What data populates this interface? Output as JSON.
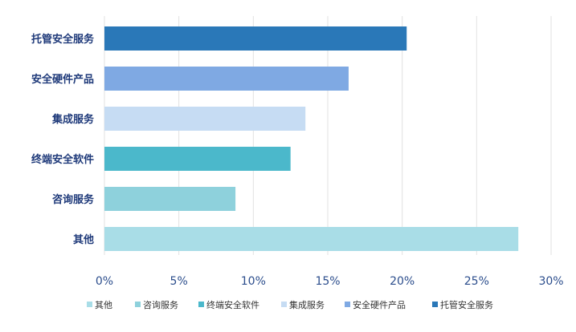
{
  "chart_data": {
    "type": "bar",
    "orientation": "horizontal",
    "categories": [
      "托管安全服务",
      "安全硬件产品",
      "集成服务",
      "终端安全软件",
      "咨询服务",
      "其他"
    ],
    "values": [
      20.3,
      16.4,
      13.5,
      12.5,
      8.8,
      27.8
    ],
    "colors": [
      "#2a78b8",
      "#7fa9e3",
      "#c6dcf3",
      "#4bb8cb",
      "#8ed1dc",
      "#a9dde7"
    ],
    "xlim": [
      0,
      30
    ],
    "xticks": [
      0,
      5,
      10,
      15,
      20,
      25,
      30
    ],
    "xtick_labels": [
      "0%",
      "5%",
      "10%",
      "15%",
      "20%",
      "25%",
      "30%"
    ],
    "grid": "vertical",
    "legend_position": "bottom",
    "legend": [
      "其他",
      "咨询服务",
      "终端安全软件",
      "集成服务",
      "安全硬件产品",
      "托管安全服务"
    ],
    "legend_colors": [
      "#a9dde7",
      "#8ed1dc",
      "#4bb8cb",
      "#c6dcf3",
      "#7fa9e3",
      "#2a78b8"
    ],
    "title": "",
    "xlabel": "",
    "ylabel": ""
  }
}
